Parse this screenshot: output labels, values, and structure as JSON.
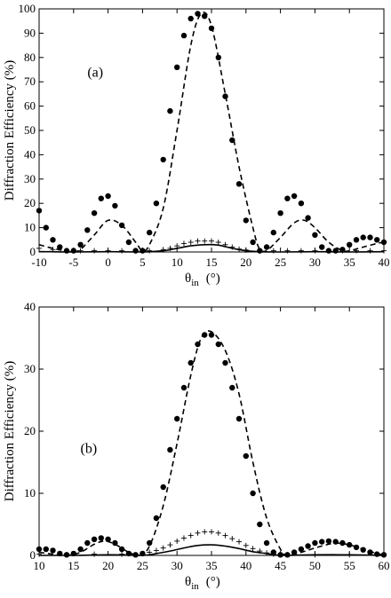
{
  "chart_data": [
    {
      "type": "line",
      "panel_label": "(a)",
      "xlabel_main": "θ",
      "xlabel_sub": "in",
      "xlabel_unit": "(°)",
      "ylabel": "Diffraction Efficiency (%)",
      "xlim": [
        -10,
        40
      ],
      "ylim": [
        0,
        100
      ],
      "x_ticks": [
        "-10",
        "-5",
        "0",
        "5",
        "10",
        "15",
        "20",
        "25",
        "30",
        "35",
        "40"
      ],
      "y_ticks": [
        "0",
        "10",
        "20",
        "30",
        "40",
        "50",
        "60",
        "70",
        "80",
        "90",
        "100"
      ],
      "series": [
        {
          "style": "dots",
          "x": [
            -10,
            -9,
            -8,
            -7,
            -6,
            -5,
            -4,
            -3,
            -2,
            -1,
            0,
            1,
            2,
            3,
            4,
            5,
            6,
            7,
            8,
            9,
            10,
            11,
            12,
            13,
            14,
            15,
            16,
            17,
            18,
            19,
            20,
            21,
            22,
            23,
            24,
            25,
            26,
            27,
            28,
            29,
            30,
            31,
            32,
            33,
            34,
            35,
            36,
            37,
            38,
            39,
            40
          ],
          "y": [
            17,
            10,
            5,
            2,
            0.5,
            0.5,
            3,
            9,
            16,
            22,
            23,
            19,
            11,
            4,
            0.5,
            0.5,
            8,
            20,
            38,
            58,
            76,
            89,
            96,
            98,
            97,
            92,
            80,
            64,
            46,
            28,
            13,
            4,
            0.5,
            2,
            8,
            16,
            22,
            23,
            20,
            14,
            7,
            2,
            0.5,
            0.5,
            1,
            3,
            5,
            6,
            6,
            5,
            4
          ]
        },
        {
          "style": "dashed",
          "x": [
            -10,
            -8,
            -6,
            -5,
            -4,
            -2,
            0,
            2,
            4,
            5,
            6,
            8,
            10,
            12,
            13.5,
            15,
            17,
            19,
            21,
            22,
            23,
            25,
            27,
            28.5,
            30,
            32,
            34,
            35,
            37,
            39,
            40
          ],
          "y": [
            3,
            1.5,
            0.3,
            0,
            1,
            7,
            13,
            11,
            4,
            0.5,
            3,
            18,
            50,
            85,
            98,
            93,
            65,
            35,
            10,
            1,
            0.5,
            6,
            12,
            13,
            10,
            4,
            0.5,
            0.5,
            2,
            3.5,
            4
          ]
        },
        {
          "style": "plus",
          "x": [
            -10,
            -8,
            -6,
            -4,
            -2,
            0,
            2,
            4,
            6,
            8,
            9,
            10,
            11,
            12,
            13,
            14,
            15,
            16,
            17,
            18,
            19,
            20,
            22,
            24,
            26,
            28,
            30,
            32,
            34,
            36,
            38,
            40
          ],
          "y": [
            1.5,
            1,
            0.5,
            0.5,
            0.5,
            0.5,
            0.5,
            0.5,
            0.5,
            1,
            1.5,
            2.5,
            3.5,
            4,
            4.5,
            4.5,
            4.5,
            4,
            3,
            2,
            1.2,
            0.8,
            0.5,
            0.5,
            0.5,
            0.5,
            0.5,
            0.5,
            0.5,
            0.5,
            0.5,
            0.5
          ]
        },
        {
          "style": "solid",
          "x": [
            -10,
            -5,
            0,
            5,
            8,
            10,
            12,
            14,
            16,
            18,
            20,
            22,
            25,
            30,
            35,
            40
          ],
          "y": [
            0.2,
            0,
            0.1,
            0,
            0.5,
            1.5,
            2.5,
            3,
            2.8,
            1.5,
            0.5,
            0.1,
            0,
            0.1,
            0,
            0.1
          ]
        }
      ]
    },
    {
      "type": "line",
      "panel_label": "(b)",
      "xlabel_main": "θ",
      "xlabel_sub": "in",
      "xlabel_unit": "(°)",
      "ylabel": "Diffraction Efficiency (%)",
      "xlim": [
        10,
        60
      ],
      "ylim": [
        0,
        40
      ],
      "x_ticks": [
        "10",
        "15",
        "20",
        "25",
        "30",
        "35",
        "40",
        "45",
        "50",
        "55",
        "60"
      ],
      "y_ticks": [
        "0",
        "10",
        "20",
        "30",
        "40"
      ],
      "series": [
        {
          "style": "dots",
          "x": [
            10,
            11,
            12,
            13,
            14,
            15,
            16,
            17,
            18,
            19,
            20,
            21,
            22,
            23,
            24,
            25,
            26,
            27,
            28,
            29,
            30,
            31,
            32,
            33,
            34,
            35,
            36,
            37,
            38,
            39,
            40,
            41,
            42,
            43,
            44,
            45,
            46,
            47,
            48,
            49,
            50,
            51,
            52,
            53,
            54,
            55,
            56,
            57,
            58,
            59,
            60
          ],
          "y": [
            1,
            1,
            0.8,
            0.3,
            0.1,
            0.3,
            1,
            2,
            2.6,
            2.8,
            2.6,
            2,
            1,
            0.3,
            0.1,
            0.3,
            2,
            6,
            11,
            17,
            22,
            27,
            31,
            34,
            35.5,
            35.5,
            34,
            31,
            27,
            22,
            16,
            10,
            5,
            2,
            0.5,
            0.1,
            0.1,
            0.5,
            1,
            1.5,
            2,
            2.2,
            2.3,
            2.2,
            2,
            1.7,
            1.3,
            0.9,
            0.5,
            0.2,
            0.1
          ]
        },
        {
          "style": "dashed",
          "x": [
            10,
            12,
            14,
            16,
            18,
            19.5,
            21,
            23,
            24.5,
            26,
            28,
            30,
            32,
            33.5,
            35,
            37,
            39,
            41,
            43,
            45,
            46,
            48,
            50,
            52,
            53,
            55,
            57,
            59,
            60
          ],
          "y": [
            0.5,
            0.2,
            0,
            0.5,
            1.8,
            2.3,
            1.8,
            0.5,
            0,
            1.5,
            8,
            18,
            29,
            35,
            36,
            33,
            26,
            15,
            6,
            1,
            0,
            0.5,
            1.2,
            1.8,
            2,
            1.7,
            1,
            0.3,
            0.1
          ]
        },
        {
          "style": "plus",
          "x": [
            10,
            14,
            18,
            22,
            25,
            26,
            27,
            28,
            29,
            30,
            31,
            32,
            33,
            34,
            35,
            36,
            37,
            38,
            39,
            40,
            41,
            42,
            43,
            44,
            46,
            50,
            55,
            60
          ],
          "y": [
            0.2,
            0.1,
            0.2,
            0.2,
            0.3,
            0.5,
            0.8,
            1.2,
            1.7,
            2.3,
            2.8,
            3.2,
            3.6,
            3.8,
            3.8,
            3.6,
            3.2,
            2.7,
            2.2,
            1.6,
            1.1,
            0.7,
            0.4,
            0.2,
            0.1,
            0.1,
            0.1,
            0.1
          ]
        },
        {
          "style": "solid",
          "x": [
            10,
            15,
            20,
            25,
            27,
            29,
            31,
            33,
            35,
            37,
            39,
            41,
            43,
            45,
            50,
            55,
            60
          ],
          "y": [
            0,
            0,
            0.1,
            0,
            0.3,
            0.7,
            1.2,
            1.6,
            1.7,
            1.5,
            1.1,
            0.6,
            0.3,
            0,
            0.1,
            0.1,
            0
          ]
        }
      ]
    }
  ]
}
